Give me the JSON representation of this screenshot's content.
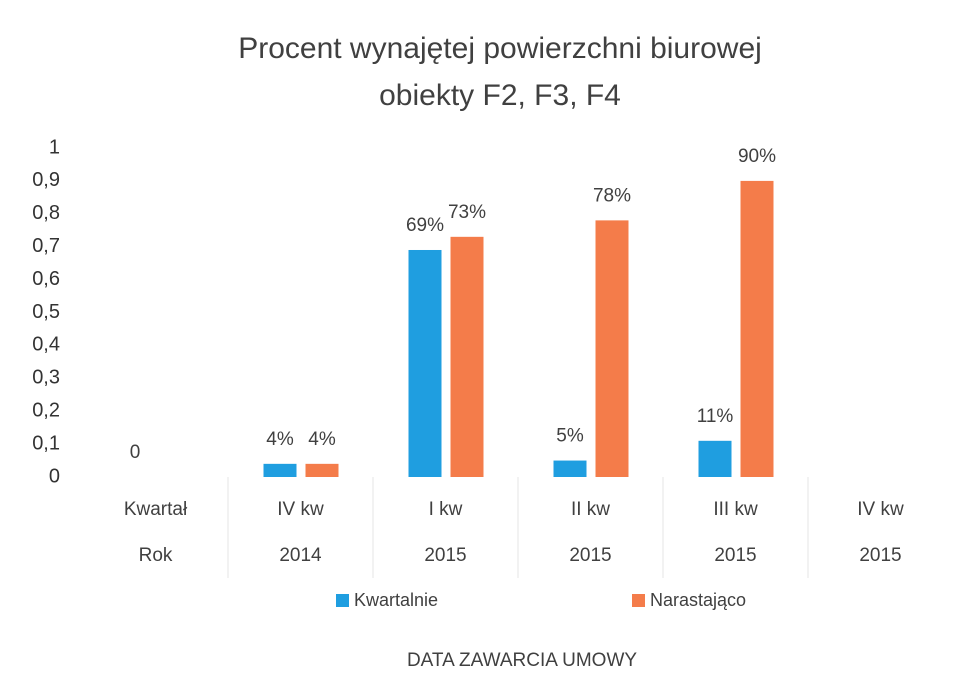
{
  "chart_data": {
    "type": "bar",
    "title": "Procent wynajętej powierzchni biurowej",
    "subtitle": "obiekty F2, F3, F4",
    "x_label": "DATA ZAWARCIA UMOWY",
    "categories": [
      "Kwartał",
      "IV kw",
      "I kw",
      "II kw",
      "III kw",
      "IV kw"
    ],
    "category_groups": [
      "Rok",
      "2014",
      "2015",
      "2015",
      "2015",
      "2015"
    ],
    "series": [
      {
        "name": "Kwartalnie",
        "color": "#1f9ee0",
        "values": [
          0,
          0.04,
          0.69,
          0.05,
          0.11,
          null
        ],
        "value_labels": [
          "0",
          "4%",
          "69%",
          "5%",
          "11%",
          null
        ]
      },
      {
        "name": "Narastająco",
        "color": "#f47c4a",
        "values": [
          null,
          0.04,
          0.73,
          0.78,
          0.9,
          null
        ],
        "value_labels": [
          null,
          "4%",
          "73%",
          "78%",
          "90%",
          null
        ]
      }
    ],
    "ylim": [
      0,
      1
    ],
    "yticks": [
      0,
      {
        "value": 0.1,
        "label": "0,1"
      },
      {
        "value": 0.2,
        "label": "0,2"
      },
      {
        "value": 0.3,
        "label": "0,3"
      },
      {
        "value": 0.4,
        "label": "0,4"
      },
      {
        "value": 0.5,
        "label": "0,5"
      },
      {
        "value": 0.6,
        "label": "0,6"
      },
      {
        "value": 0.7,
        "label": "0,7"
      },
      {
        "value": 0.8,
        "label": "0,8"
      },
      {
        "value": 0.9,
        "label": "0,9"
      },
      1
    ],
    "grid": false
  }
}
